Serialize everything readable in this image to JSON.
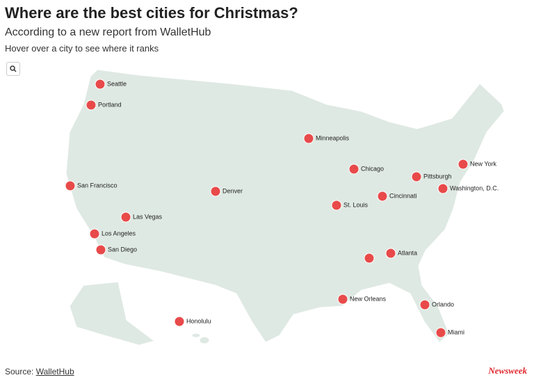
{
  "header": {
    "title": "Where are the best cities for Christmas?",
    "subtitle": "According to a new report from WalletHub",
    "hint": "Hover over a city to see where it ranks"
  },
  "map": {
    "cities": [
      "Seattle",
      "Portland",
      "Minneapolis",
      "Chicago",
      "New York",
      "Pittsburgh",
      "Washington, D.C.",
      "San Francisco",
      "Denver",
      "Cincinnati",
      "St. Louis",
      "Las Vegas",
      "Los Angeles",
      "San Diego",
      "Atlanta",
      "New Orleans",
      "Orlando",
      "Honolulu",
      "Miami"
    ]
  },
  "footer": {
    "source_prefix": "Source:",
    "source_link": "WalletHub",
    "brand": "Newsweek"
  }
}
